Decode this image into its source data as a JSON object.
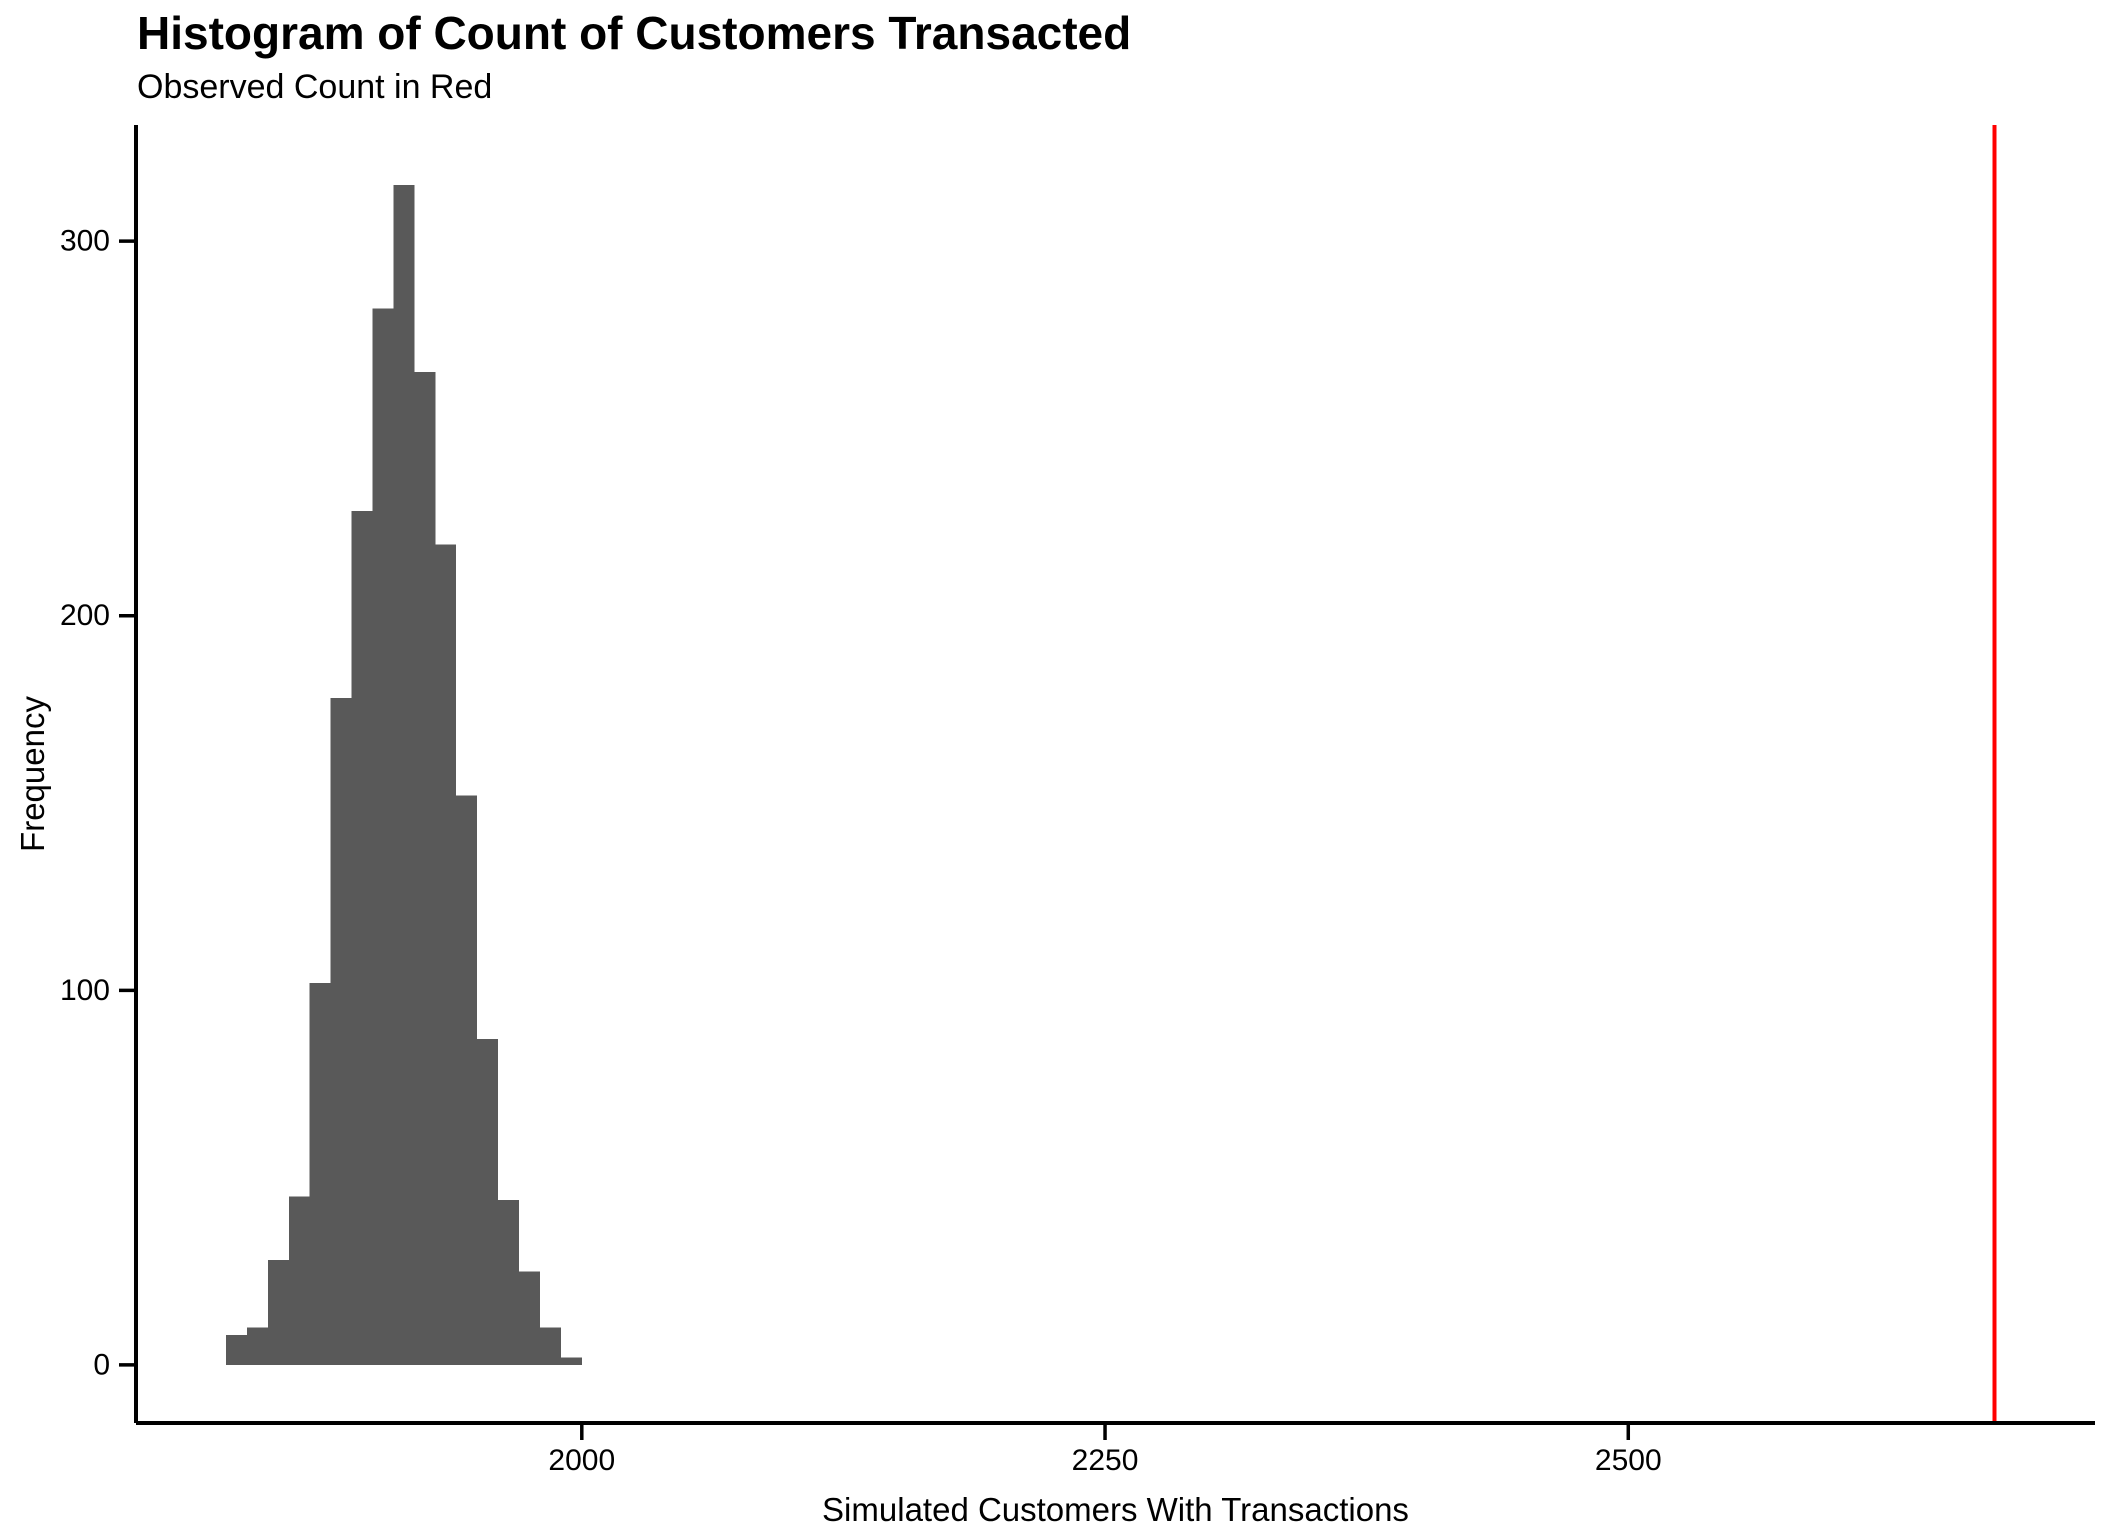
{
  "chart_data": {
    "type": "bar",
    "subtype": "histogram",
    "title": "Histogram of Count of Customers Transacted",
    "subtitle": "Observed Count in Red",
    "xlabel": "Simulated Customers With Transactions",
    "ylabel": "Frequency",
    "bin_start": 1830,
    "bin_width": 10,
    "frequencies": [
      8,
      10,
      28,
      45,
      102,
      178,
      228,
      282,
      315,
      265,
      219,
      152,
      87,
      44,
      25,
      10,
      2
    ],
    "observed_count_x": 2675,
    "x_ticks": [
      2000,
      2250,
      2500
    ],
    "y_ticks": [
      0,
      100,
      200,
      300
    ],
    "xlim": [
      1787,
      2723
    ],
    "ylim": [
      -15.5,
      331
    ],
    "grid": false,
    "legend": "none",
    "colors": {
      "bar": "#595959",
      "observed_line": "#ff0000",
      "axis": "#000000",
      "text": "#000000"
    }
  }
}
